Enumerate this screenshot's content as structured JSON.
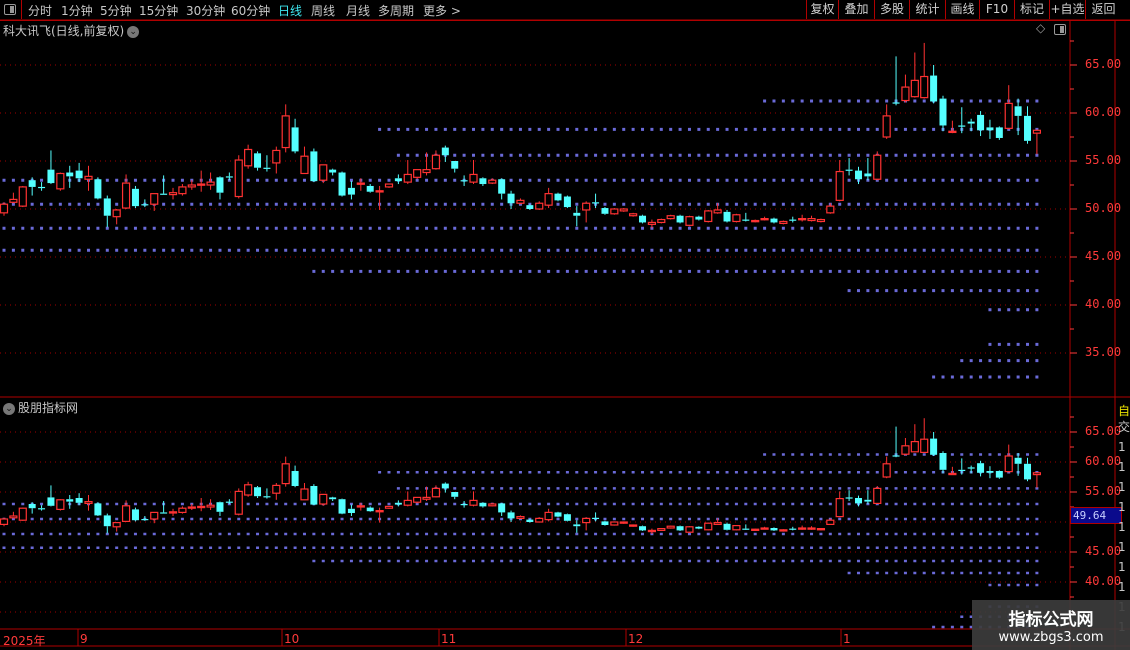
{
  "toolbar": {
    "periods": [
      "分时",
      "1分钟",
      "5分钟",
      "15分钟",
      "30分钟",
      "60分钟",
      "日线",
      "周线",
      "月线",
      "多周期",
      "更多 >"
    ],
    "active_period": "日线",
    "buttons": [
      "复权",
      "叠加",
      "多股",
      "统计",
      "画线",
      "F10",
      "标记",
      "+自选",
      "返回"
    ]
  },
  "main_pane": {
    "title": "科大讯飞(日线,前复权)",
    "y_ticks": [
      "65.00",
      "60.00",
      "55.00",
      "50.00",
      "45.00",
      "40.00",
      "35.00"
    ]
  },
  "indicator_pane": {
    "title": "股朋指标网",
    "y_ticks": [
      "65.00",
      "60.00",
      "55.00",
      "45.00",
      "40.00"
    ],
    "cursor_price": "49.64"
  },
  "right_column": {
    "top_chars": [
      "自",
      "交"
    ],
    "row_char": "1"
  },
  "x_axis": {
    "labels": [
      "2025年",
      "9",
      "10",
      "11",
      "12",
      "1"
    ]
  },
  "watermark": {
    "line1": "指标公式网",
    "line2": "www.zbgs3.com"
  },
  "colors": {
    "up": "#ff3232",
    "down": "#54ffff",
    "grid": "#a00000",
    "level": "#6a6ad8",
    "axis": "#ff3a3a",
    "active": "#3ee8f0"
  },
  "chart_data": {
    "type": "candlestick",
    "title": "科大讯飞(日线,前复权)",
    "ylim_main": [
      30.5,
      67.9
    ],
    "ylim_indicator": [
      32.3,
      70.7
    ],
    "grid": true,
    "candles_ohlc": [
      [
        49.6,
        50.7,
        49.3,
        50.5
      ],
      [
        50.7,
        51.7,
        50.6,
        51.0
      ],
      [
        50.3,
        52.4,
        50.2,
        52.3
      ],
      [
        53.0,
        53.3,
        51.4,
        52.3
      ],
      [
        52.3,
        52.8,
        51.9,
        52.2
      ],
      [
        54.1,
        56.1,
        52.6,
        52.7
      ],
      [
        52.1,
        53.8,
        51.9,
        53.7
      ],
      [
        53.8,
        54.5,
        52.2,
        53.4
      ],
      [
        54.0,
        54.8,
        52.8,
        53.2
      ],
      [
        53.1,
        54.5,
        51.9,
        53.4
      ],
      [
        53.1,
        53.3,
        51.0,
        51.1
      ],
      [
        51.1,
        51.4,
        48.1,
        49.3
      ],
      [
        49.2,
        50.0,
        48.4,
        49.9
      ],
      [
        50.1,
        53.6,
        50.0,
        52.7
      ],
      [
        52.1,
        52.4,
        50.1,
        50.3
      ],
      [
        50.5,
        51.0,
        50.2,
        50.4
      ],
      [
        50.5,
        51.6,
        49.8,
        51.6
      ],
      [
        51.6,
        53.5,
        51.5,
        51.5
      ],
      [
        51.5,
        52.2,
        51.0,
        51.7
      ],
      [
        51.6,
        52.6,
        51.4,
        52.3
      ],
      [
        52.3,
        53.0,
        52.0,
        52.5
      ],
      [
        52.5,
        54.0,
        51.8,
        52.6
      ],
      [
        52.5,
        53.8,
        52.0,
        52.8
      ],
      [
        53.3,
        53.4,
        51.0,
        51.7
      ],
      [
        53.4,
        53.8,
        53.0,
        53.3
      ],
      [
        51.3,
        55.6,
        51.1,
        55.1
      ],
      [
        54.5,
        56.7,
        54.2,
        56.2
      ],
      [
        55.8,
        56.0,
        54.0,
        54.3
      ],
      [
        54.3,
        55.6,
        53.9,
        54.2
      ],
      [
        54.8,
        56.5,
        53.7,
        56.1
      ],
      [
        56.4,
        60.9,
        55.9,
        59.7
      ],
      [
        58.5,
        59.4,
        55.8,
        56.0
      ],
      [
        53.7,
        56.5,
        53.7,
        55.5
      ],
      [
        56.0,
        56.3,
        52.8,
        52.9
      ],
      [
        53.0,
        54.6,
        52.7,
        54.6
      ],
      [
        54.1,
        54.2,
        53.5,
        53.8
      ],
      [
        53.8,
        53.9,
        51.3,
        51.4
      ],
      [
        52.2,
        52.9,
        51.0,
        51.5
      ],
      [
        52.6,
        53.2,
        51.9,
        52.7
      ],
      [
        52.4,
        52.6,
        51.7,
        51.8
      ],
      [
        51.8,
        52.4,
        49.9,
        51.9
      ],
      [
        52.3,
        52.6,
        52.2,
        52.6
      ],
      [
        53.2,
        53.6,
        52.6,
        52.9
      ],
      [
        52.8,
        55.1,
        52.6,
        53.6
      ],
      [
        53.3,
        54.1,
        53.1,
        54.1
      ],
      [
        53.8,
        55.9,
        53.5,
        54.1
      ],
      [
        54.2,
        56.1,
        54.1,
        55.6
      ],
      [
        56.4,
        56.6,
        54.9,
        55.6
      ],
      [
        55.0,
        55.0,
        53.8,
        54.2
      ],
      [
        53.0,
        53.5,
        52.4,
        52.9
      ],
      [
        52.8,
        55.1,
        52.6,
        53.6
      ],
      [
        53.2,
        53.3,
        52.4,
        52.6
      ],
      [
        52.7,
        53.2,
        52.6,
        53.0
      ],
      [
        53.1,
        53.2,
        51.0,
        51.6
      ],
      [
        51.6,
        51.9,
        50.0,
        50.6
      ],
      [
        50.6,
        51.1,
        50.5,
        50.9
      ],
      [
        50.4,
        50.5,
        49.9,
        50.0
      ],
      [
        50.0,
        50.8,
        49.9,
        50.6
      ],
      [
        50.4,
        52.2,
        50.1,
        51.6
      ],
      [
        51.6,
        51.7,
        50.8,
        50.9
      ],
      [
        51.3,
        51.4,
        50.1,
        50.2
      ],
      [
        49.6,
        50.3,
        48.2,
        49.3
      ],
      [
        49.9,
        50.8,
        48.6,
        50.6
      ],
      [
        50.7,
        51.6,
        50.1,
        50.6
      ],
      [
        50.1,
        50.2,
        49.4,
        49.5
      ],
      [
        49.5,
        50.1,
        49.4,
        50.0
      ],
      [
        49.8,
        50.1,
        49.7,
        50.0
      ],
      [
        49.3,
        49.6,
        49.2,
        49.5
      ],
      [
        49.3,
        49.4,
        48.5,
        48.6
      ],
      [
        48.4,
        48.9,
        48.0,
        48.6
      ],
      [
        48.6,
        49.0,
        48.5,
        48.9
      ],
      [
        49.0,
        49.4,
        48.9,
        49.3
      ],
      [
        49.3,
        49.4,
        48.5,
        48.6
      ],
      [
        48.3,
        49.3,
        48.2,
        49.2
      ],
      [
        49.2,
        49.3,
        48.8,
        48.9
      ],
      [
        48.7,
        49.9,
        48.6,
        49.8
      ],
      [
        49.6,
        50.6,
        49.5,
        49.9
      ],
      [
        49.7,
        49.9,
        48.6,
        48.7
      ],
      [
        48.7,
        49.5,
        48.6,
        49.4
      ],
      [
        48.9,
        49.6,
        48.7,
        48.8
      ],
      [
        48.7,
        48.9,
        48.6,
        48.8
      ],
      [
        48.9,
        49.2,
        48.8,
        49.0
      ],
      [
        49.0,
        49.1,
        48.5,
        48.6
      ],
      [
        48.5,
        48.8,
        48.4,
        48.7
      ],
      [
        48.9,
        49.2,
        48.6,
        48.8
      ],
      [
        48.9,
        49.4,
        48.7,
        49.0
      ],
      [
        48.8,
        49.3,
        48.7,
        49.0
      ],
      [
        48.7,
        49.0,
        48.6,
        48.9
      ],
      [
        49.6,
        50.6,
        49.5,
        50.3
      ],
      [
        50.9,
        55.1,
        50.8,
        53.9
      ],
      [
        54.1,
        55.3,
        53.5,
        54.0
      ],
      [
        54.0,
        54.4,
        52.6,
        53.1
      ],
      [
        53.7,
        55.3,
        53.0,
        53.4
      ],
      [
        53.1,
        56.0,
        53.0,
        55.6
      ],
      [
        57.5,
        60.9,
        57.3,
        59.7
      ],
      [
        61.1,
        65.9,
        60.8,
        61.0
      ],
      [
        61.3,
        64.0,
        61.1,
        62.7
      ],
      [
        61.7,
        66.3,
        61.6,
        63.4
      ],
      [
        61.6,
        67.3,
        61.5,
        63.8
      ],
      [
        63.9,
        65.0,
        61.0,
        61.2
      ],
      [
        61.5,
        61.8,
        58.1,
        58.7
      ],
      [
        58.0,
        59.2,
        57.9,
        58.1
      ],
      [
        58.7,
        60.6,
        57.9,
        58.6
      ],
      [
        59.1,
        59.4,
        58.1,
        58.9
      ],
      [
        59.8,
        60.2,
        57.6,
        58.2
      ],
      [
        58.5,
        59.3,
        57.3,
        58.2
      ],
      [
        58.5,
        58.6,
        57.2,
        57.4
      ],
      [
        58.4,
        62.9,
        58.3,
        61.0
      ],
      [
        60.7,
        61.5,
        57.7,
        59.7
      ],
      [
        59.7,
        60.7,
        56.8,
        57.1
      ],
      [
        57.9,
        58.2,
        55.7,
        58.2
      ]
    ],
    "levels": [
      {
        "price": 61.25,
        "from_index": 81
      },
      {
        "price": 58.3,
        "from_index": 40
      },
      {
        "price": 55.6,
        "from_index": 42
      },
      {
        "price": 53.0,
        "from_index": 0
      },
      {
        "price": 50.5,
        "from_index": 0
      },
      {
        "price": 48.0,
        "from_index": 0
      },
      {
        "price": 45.7,
        "from_index": 0
      },
      {
        "price": 43.5,
        "from_index": 33
      },
      {
        "price": 41.5,
        "from_index": 90
      },
      {
        "price": 39.5,
        "from_index": 105
      },
      {
        "price": 35.9,
        "from_index": 105
      },
      {
        "price": 34.2,
        "from_index": 102
      },
      {
        "price": 32.5,
        "from_index": 99
      }
    ],
    "grid_prices": [
      35,
      40,
      45,
      50,
      55,
      60,
      65
    ]
  }
}
